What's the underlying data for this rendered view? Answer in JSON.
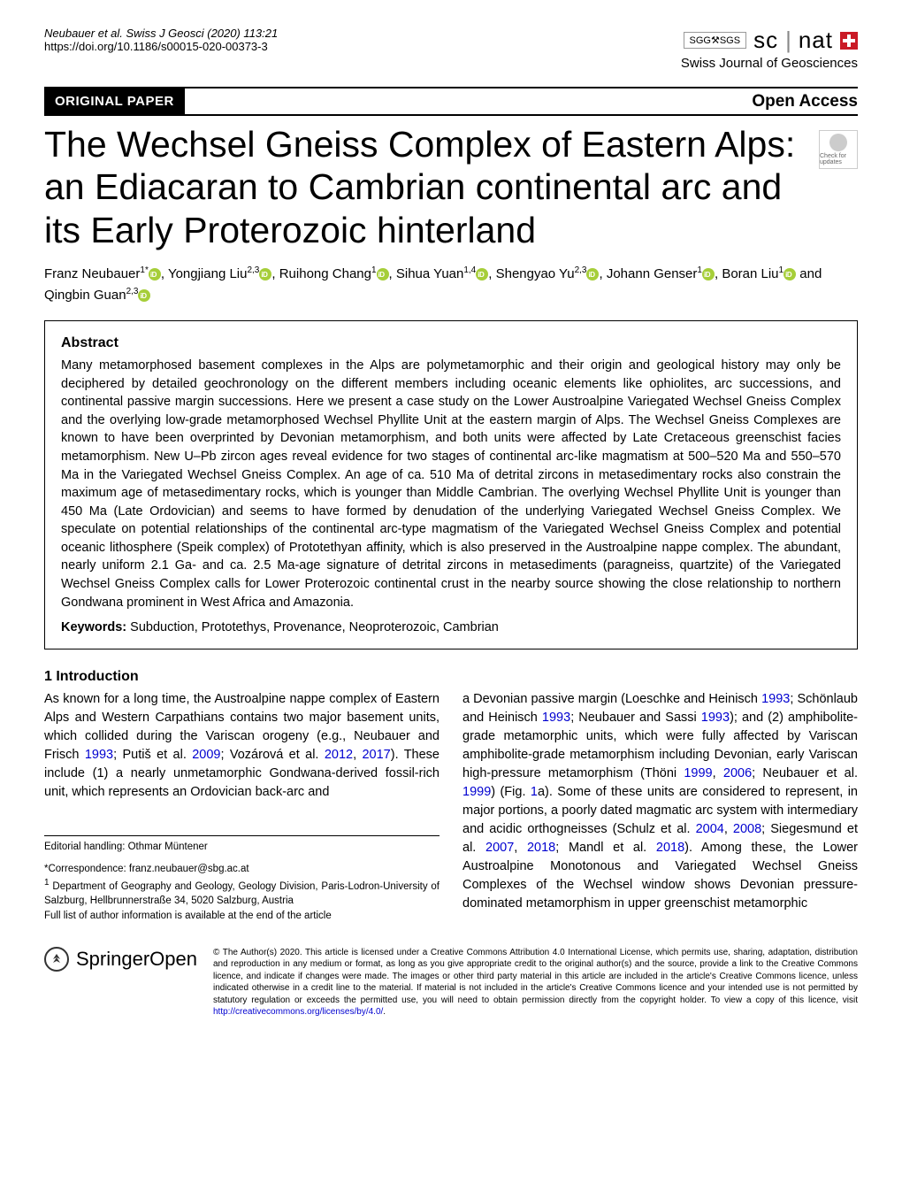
{
  "header": {
    "citation": "Neubauer et al. Swiss J Geosci    (2020) 113:21",
    "doi": "https://doi.org/10.1186/s00015-020-00373-3",
    "logo_sc": "sc",
    "logo_nat": "nat",
    "sgg": "SGG⚒SGS",
    "journal_name": "Swiss Journal of Geosciences"
  },
  "banner": {
    "badge": "ORIGINAL PAPER",
    "open_access": "Open Access"
  },
  "title": "The Wechsel Gneiss Complex of Eastern Alps: an Ediacaran to Cambrian continental arc and its Early Proterozoic hinterland",
  "check_updates": "Check for updates",
  "authors": [
    {
      "name": "Franz Neubauer",
      "aff": "1*",
      "orcid": true
    },
    {
      "name": "Yongjiang Liu",
      "aff": "2,3",
      "orcid": true
    },
    {
      "name": "Ruihong Chang",
      "aff": "1",
      "orcid": true
    },
    {
      "name": "Sihua Yuan",
      "aff": "1,4",
      "orcid": true
    },
    {
      "name": "Shengyao Yu",
      "aff": "2,3",
      "orcid": true
    },
    {
      "name": "Johann Genser",
      "aff": "1",
      "orcid": true
    },
    {
      "name": "Boran Liu",
      "aff": "1",
      "orcid": true
    },
    {
      "name_prefix": " and ",
      "name": "Qingbin Guan",
      "aff": "2,3",
      "orcid": true
    }
  ],
  "abstract": {
    "heading": "Abstract",
    "text": "Many metamorphosed basement complexes in the Alps are polymetamorphic and their origin and geological history may only be deciphered by detailed geochronology on the different members including oceanic elements like ophiolites, arc successions, and continental passive margin successions. Here we present a case study on the Lower Austroalpine Variegated Wechsel Gneiss Complex and the overlying low-grade metamorphosed Wechsel Phyllite Unit at the eastern margin of Alps. The Wechsel Gneiss Complexes are known to have been overprinted by Devonian metamorphism, and both units were affected by Late Cretaceous greenschist facies metamorphism. New U–Pb zircon ages reveal evidence for two stages of continental arc-like magmatism at 500–520 Ma and 550–570 Ma in the Variegated Wechsel Gneiss Complex. An age of ca. 510 Ma of detrital zircons in metasedimentary rocks also constrain the maximum age of metasedimentary rocks, which is younger than Middle Cambrian. The overlying Wechsel Phyllite Unit is younger than 450 Ma (Late Ordovician) and seems to have formed by denudation of the underlying Variegated Wechsel Gneiss Complex. We speculate on potential relationships of the continental arc-type magmatism of the Variegated Wechsel Gneiss Complex and potential oceanic lithosphere (Speik complex) of Prototethyan affinity, which is also preserved in the Austroalpine nappe complex. The abundant, nearly uniform 2.1 Ga- and ca. 2.5 Ma-age signature of detrital zircons in metasediments (paragneiss, quartzite) of the Variegated Wechsel Gneiss Complex calls for Lower Proterozoic continental crust in the nearby source showing the close relationship to northern Gondwana prominent in West Africa and Amazonia.",
    "keywords_label": "Keywords:",
    "keywords": "Subduction, Prototethys, Provenance, Neoproterozoic, Cambrian"
  },
  "intro": {
    "heading": "1 Introduction",
    "col1_a": "As known for a long time, the Austroalpine nappe complex of Eastern Alps and Western Carpathians contains two major basement units, which collided during the Variscan orogeny (e.g., Neubauer and Frisch ",
    "ref1": "1993",
    "col1_b": "; Putiš et al. ",
    "ref2": "2009",
    "col1_c": "; Vozárová et al. ",
    "ref3": "2012",
    "col1_c2": ", ",
    "ref3b": "2017",
    "col1_d": "). These include (1) a nearly unmetamorphic Gondwana-derived fossil-rich unit, which represents an Ordovician back-arc and",
    "col2_a": "a Devonian passive margin (Loeschke and Heinisch ",
    "ref4": "1993",
    "col2_b": "; Schönlaub and Heinisch ",
    "ref5": "1993",
    "col2_c": "; Neubauer and Sassi ",
    "ref6": "1993",
    "col2_d": "); and (2) amphibolite-grade metamorphic units, which were fully affected by Variscan amphibolite-grade metamorphism including Devonian, early Variscan high-pressure metamorphism (Thöni ",
    "ref7": "1999",
    "col2_d2": ", ",
    "ref7b": "2006",
    "col2_e": "; Neubauer et al. ",
    "ref8": "1999",
    "col2_f": ") (Fig. ",
    "ref9": "1",
    "col2_g": "a). Some of these units are considered to represent, in major portions, a poorly dated magmatic arc system with intermediary and acidic orthogneisses (Schulz et al. ",
    "ref10": "2004",
    "col2_g2": ", ",
    "ref10b": "2008",
    "col2_h": "; Siegesmund et al. ",
    "ref11": "2007",
    "col2_h2": ", ",
    "ref11b": "2018",
    "col2_i": "; Mandl et al. ",
    "ref12": "2018",
    "col2_j": "). Among these, the Lower Austroalpine Monotonous and Variegated Wechsel Gneiss Complexes of the Wechsel window shows Devonian pressure-dominated metamorphism in upper greenschist metamorphic"
  },
  "editorial": "Editorial handling: Othmar Müntener",
  "correspondence": {
    "line1": "*Correspondence:  franz.neubauer@sbg.ac.at",
    "line2_a": "1",
    "line2_b": " Department of Geography and Geology, Geology Division, Paris-Lodron-University of Salzburg, Hellbrunnerstraße 34, 5020 Salzburg, Austria",
    "line3": "Full list of author information is available at the end of the article"
  },
  "footer": {
    "springer": "Springer",
    "open": "Open",
    "license_a": "© The Author(s) 2020. This article is licensed under a Creative Commons Attribution 4.0 International License, which permits use, sharing, adaptation, distribution and reproduction in any medium or format, as long as you give appropriate credit to the original author(s) and the source, provide a link to the Creative Commons licence, and indicate if changes were made. The images or other third party material in this article are included in the article's Creative Commons licence, unless indicated otherwise in a credit line to the material. If material is not included in the article's Creative Commons licence and your intended use is not permitted by statutory regulation or exceeds the permitted use, you will need to obtain permission directly from the copyright holder. To view a copy of this licence, visit ",
    "license_link": "http://creativecommons.org/licenses/by/4.0/",
    "license_b": "."
  }
}
